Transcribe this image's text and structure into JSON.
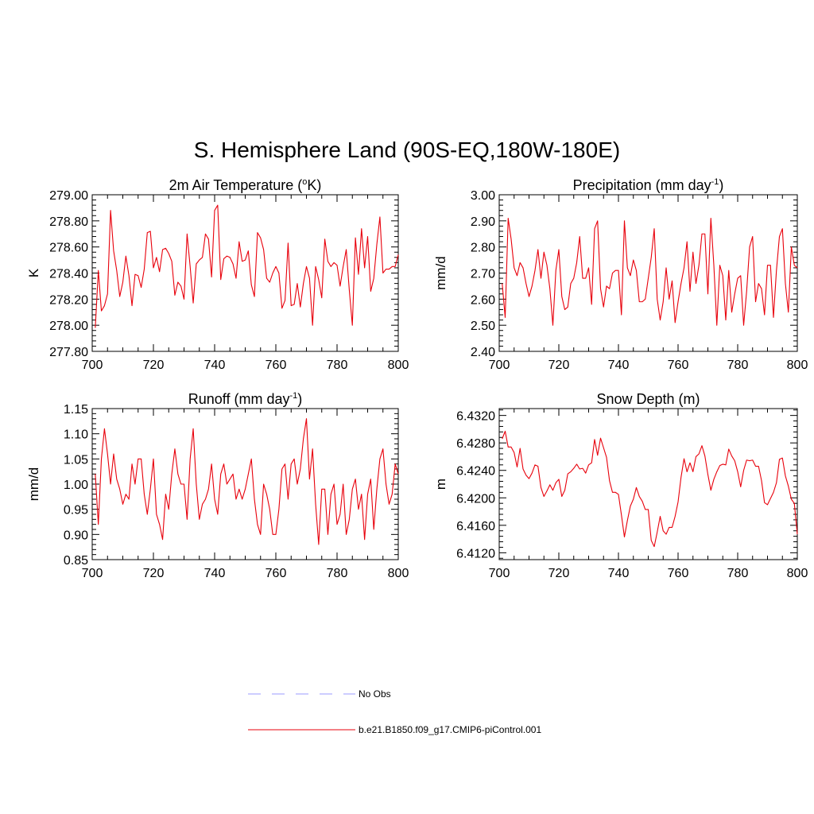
{
  "figure_title": "S. Hemisphere Land (90S-EQ,180W-180E)",
  "colors": {
    "model_line": "#e8000b",
    "obs_line": "#9b9bff",
    "axis": "#000000"
  },
  "legend": {
    "obs_label": "No Obs",
    "model_label": "b.e21.B1850.f09_g17.CMIP6-piControl.001"
  },
  "chart_data": [
    {
      "type": "line",
      "title_main": "2m Air Temperature (",
      "title_sup": "o",
      "title_tail": "K)",
      "ylabel": "K",
      "xlim": [
        700,
        800
      ],
      "ylim": [
        277.8,
        279.0
      ],
      "xticks": [
        700,
        720,
        740,
        760,
        780,
        800
      ],
      "yticks": [
        277.8,
        278.0,
        278.2,
        278.4,
        278.6,
        278.8,
        279.0
      ],
      "ytick_decimals": 2,
      "series": [
        {
          "name": "b.e21.B1850.f09_g17.CMIP6-piControl.001",
          "x_start": 701,
          "values": [
            277.98,
            278.42,
            278.11,
            278.15,
            278.24,
            278.88,
            278.57,
            278.42,
            278.22,
            278.33,
            278.53,
            278.38,
            278.15,
            278.39,
            278.38,
            278.29,
            278.43,
            278.71,
            278.72,
            278.44,
            278.52,
            278.41,
            278.58,
            278.59,
            278.55,
            278.49,
            278.23,
            278.33,
            278.3,
            278.2,
            278.7,
            278.45,
            278.17,
            278.47,
            278.5,
            278.52,
            278.7,
            278.66,
            278.37,
            278.88,
            278.92,
            278.35,
            278.51,
            278.53,
            278.52,
            278.47,
            278.36,
            278.64,
            278.49,
            278.5,
            278.57,
            278.31,
            278.22,
            278.71,
            278.67,
            278.58,
            278.36,
            278.33,
            278.4,
            278.45,
            278.4,
            278.13,
            278.19,
            278.63,
            278.15,
            278.16,
            278.32,
            278.14,
            278.32,
            278.45,
            278.36,
            278.0,
            278.45,
            278.35,
            278.21,
            278.66,
            278.49,
            278.45,
            278.48,
            278.46,
            278.3,
            278.45,
            278.58,
            278.27,
            278.0,
            278.67,
            278.39,
            278.74,
            278.44,
            278.68,
            278.26,
            278.36,
            278.62,
            278.83,
            278.4,
            278.43,
            278.43,
            278.45,
            278.45,
            278.54
          ]
        }
      ]
    },
    {
      "type": "line",
      "title_main": "Precipitation (mm day",
      "title_sup": "-1",
      "title_tail": ")",
      "ylabel": "mm/d",
      "xlim": [
        700,
        800
      ],
      "ylim": [
        2.4,
        3.0
      ],
      "xticks": [
        700,
        720,
        740,
        760,
        780,
        800
      ],
      "yticks": [
        2.4,
        2.5,
        2.6,
        2.7,
        2.8,
        2.9,
        3.0
      ],
      "ytick_decimals": 2,
      "series": [
        {
          "name": "b.e21.B1850.f09_g17.CMIP6-piControl.001",
          "x_start": 701,
          "values": [
            2.66,
            2.53,
            2.91,
            2.83,
            2.72,
            2.69,
            2.74,
            2.72,
            2.66,
            2.61,
            2.65,
            2.71,
            2.79,
            2.68,
            2.78,
            2.73,
            2.64,
            2.5,
            2.71,
            2.79,
            2.61,
            2.56,
            2.57,
            2.66,
            2.68,
            2.74,
            2.84,
            2.68,
            2.68,
            2.72,
            2.58,
            2.87,
            2.9,
            2.64,
            2.57,
            2.65,
            2.64,
            2.7,
            2.71,
            2.71,
            2.54,
            2.9,
            2.72,
            2.69,
            2.75,
            2.71,
            2.59,
            2.59,
            2.6,
            2.68,
            2.76,
            2.87,
            2.6,
            2.52,
            2.59,
            2.72,
            2.6,
            2.67,
            2.51,
            2.59,
            2.66,
            2.72,
            2.82,
            2.63,
            2.78,
            2.66,
            2.73,
            2.85,
            2.85,
            2.62,
            2.91,
            2.73,
            2.5,
            2.73,
            2.69,
            2.52,
            2.71,
            2.55,
            2.62,
            2.68,
            2.69,
            2.5,
            2.63,
            2.8,
            2.84,
            2.59,
            2.66,
            2.64,
            2.54,
            2.73,
            2.73,
            2.53,
            2.71,
            2.84,
            2.87,
            2.66,
            2.55,
            2.8,
            2.73,
            2.72
          ]
        }
      ]
    },
    {
      "type": "line",
      "title_main": "Runoff (mm day",
      "title_sup": "-1",
      "title_tail": ")",
      "ylabel": "mm/d",
      "xlim": [
        700,
        800
      ],
      "ylim": [
        0.85,
        1.15
      ],
      "xticks": [
        700,
        720,
        740,
        760,
        780,
        800
      ],
      "yticks": [
        0.85,
        0.9,
        0.95,
        1.0,
        1.05,
        1.1,
        1.15
      ],
      "ytick_decimals": 2,
      "series": [
        {
          "name": "b.e21.B1850.f09_g17.CMIP6-piControl.001",
          "x_start": 701,
          "values": [
            1.02,
            0.92,
            1.05,
            1.11,
            1.06,
            1.0,
            1.06,
            1.01,
            0.99,
            0.96,
            0.98,
            0.97,
            1.04,
            1.0,
            1.05,
            1.05,
            0.98,
            0.94,
            0.99,
            1.05,
            0.94,
            0.92,
            0.89,
            0.98,
            0.95,
            1.02,
            1.07,
            1.02,
            1.0,
            1.0,
            0.93,
            1.05,
            1.11,
            1.0,
            0.93,
            0.96,
            0.97,
            0.99,
            1.04,
            0.97,
            0.94,
            1.02,
            1.04,
            1.0,
            1.01,
            1.02,
            0.97,
            0.99,
            0.97,
            0.99,
            1.02,
            1.05,
            0.97,
            0.92,
            0.9,
            1.0,
            0.98,
            0.95,
            0.9,
            0.9,
            0.95,
            1.03,
            1.04,
            0.97,
            1.04,
            1.05,
            1.0,
            1.03,
            1.09,
            1.13,
            1.01,
            1.07,
            0.96,
            0.88,
            0.99,
            0.99,
            0.9,
            0.98,
            1.0,
            0.92,
            0.94,
            1.0,
            0.9,
            0.93,
            0.99,
            1.01,
            0.95,
            0.98,
            0.89,
            0.98,
            1.01,
            0.91,
            0.99,
            1.05,
            1.07,
            1.0,
            0.96,
            0.98,
            1.04,
            1.02
          ]
        }
      ]
    },
    {
      "type": "line",
      "title_main": "Snow Depth (m)",
      "title_sup": "",
      "title_tail": "",
      "ylabel": "m",
      "xlim": [
        700,
        800
      ],
      "ylim": [
        6.411,
        6.433
      ],
      "xticks": [
        700,
        720,
        740,
        760,
        780,
        800
      ],
      "yticks": [
        6.412,
        6.416,
        6.42,
        6.424,
        6.428,
        6.432
      ],
      "ytick_decimals": 4,
      "series": [
        {
          "name": "b.e21.B1850.f09_g17.CMIP6-piControl.001",
          "x_start": 701,
          "values": [
            6.4286,
            6.4297,
            6.4274,
            6.4274,
            6.4266,
            6.4245,
            6.4272,
            6.4242,
            6.4233,
            6.4228,
            6.4236,
            6.4248,
            6.4246,
            6.4215,
            6.4202,
            6.421,
            6.4219,
            6.4211,
            6.4222,
            6.4227,
            6.4202,
            6.4211,
            6.4235,
            6.4238,
            6.4243,
            6.4249,
            6.4242,
            6.4243,
            6.4236,
            6.4248,
            6.4251,
            6.4285,
            6.4262,
            6.4287,
            6.4273,
            6.4259,
            6.4225,
            6.4208,
            6.4208,
            6.4205,
            6.4175,
            6.4143,
            6.4167,
            6.4188,
            6.4198,
            6.4215,
            6.4202,
            6.4195,
            6.4183,
            6.4183,
            6.4138,
            6.4129,
            6.415,
            6.4173,
            6.4152,
            6.4147,
            6.4157,
            6.4157,
            6.4173,
            6.4194,
            6.423,
            6.4257,
            6.4238,
            6.4251,
            6.4238,
            6.426,
            6.4264,
            6.4276,
            6.4261,
            6.4234,
            6.4211,
            6.4227,
            6.4238,
            6.4247,
            6.4249,
            6.4248,
            6.4271,
            6.4261,
            6.4254,
            6.4238,
            6.4216,
            6.424,
            6.4255,
            6.4254,
            6.4255,
            6.4246,
            6.4246,
            6.4225,
            6.4193,
            6.419,
            6.4199,
            6.4208,
            6.4222,
            6.4256,
            6.4258,
            6.4232,
            6.4217,
            6.4198,
            6.4192,
            6.4147
          ]
        }
      ]
    }
  ]
}
